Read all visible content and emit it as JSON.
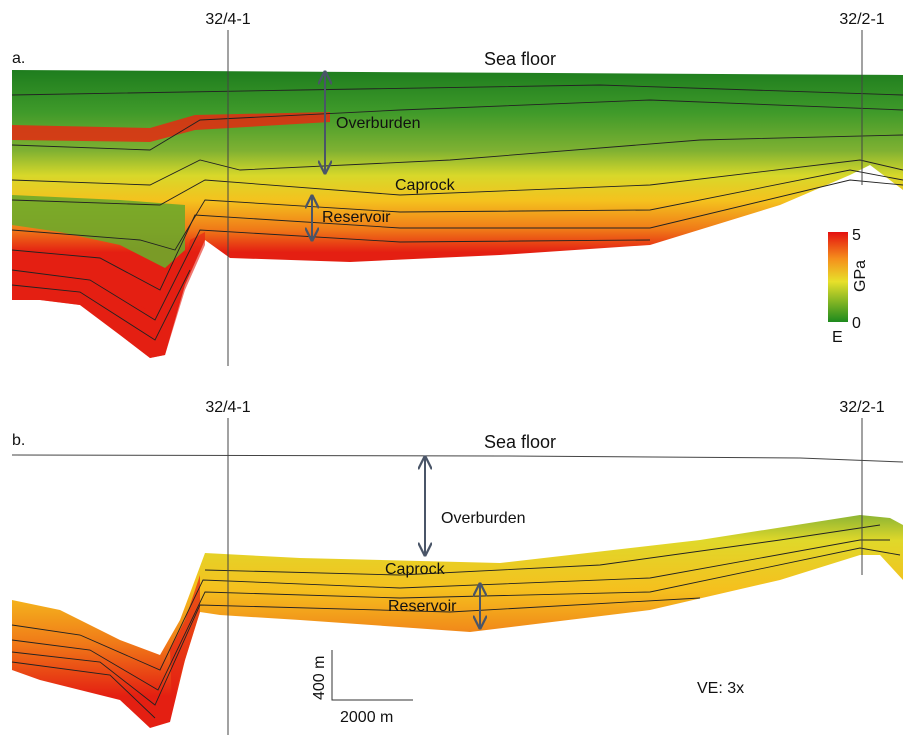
{
  "panels": [
    {
      "label": "a.",
      "wells": [
        "32/4-1",
        "32/2-1"
      ],
      "annotations": [
        "Sea floor",
        "Overburden",
        "Caprock",
        "Reservoir"
      ]
    },
    {
      "label": "b.",
      "wells": [
        "32/4-1",
        "32/2-1"
      ],
      "annotations": [
        "Sea floor",
        "Overburden",
        "Caprock",
        "Reservoir"
      ]
    }
  ],
  "colorbar": {
    "max": 5,
    "min": 0,
    "unit": "GPa",
    "variable": "E"
  },
  "scale_bar": {
    "vertical": "400 m",
    "horizontal": "2000 m"
  },
  "vertical_exaggeration": "VE: 3x"
}
